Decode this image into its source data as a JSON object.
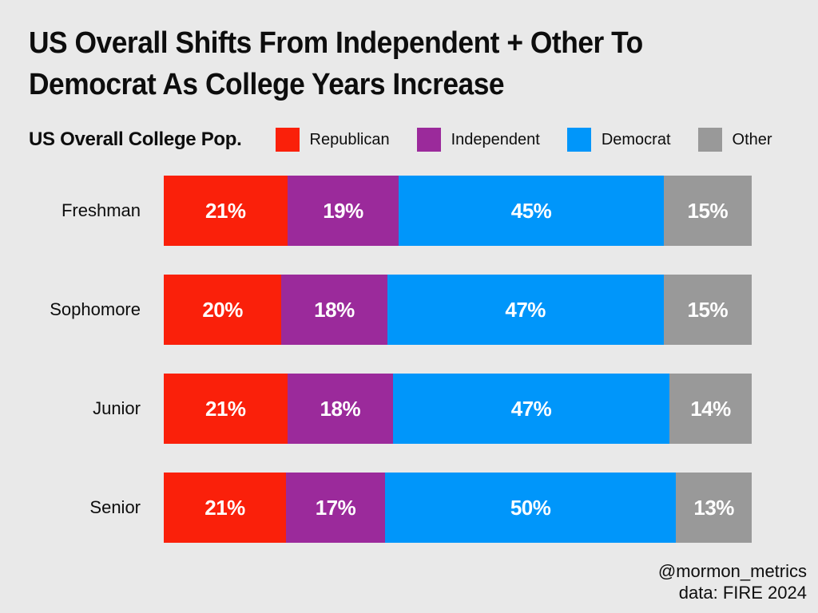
{
  "background": "#E9E9E9",
  "header": {
    "title_lines": [
      "US Overall Shifts From Independent + Other To",
      "Democrat As College Years Increase"
    ],
    "subtitle": "US Overall College Pop."
  },
  "legend": {
    "items": [
      {
        "label": "Republican",
        "color": "#FA200A"
      },
      {
        "label": "Independent",
        "color": "#9B2A9B"
      },
      {
        "label": "Democrat",
        "color": "#0096FA"
      },
      {
        "label": "Other",
        "color": "#999999"
      }
    ]
  },
  "chart_data": {
    "type": "bar",
    "orientation": "horizontal",
    "stacked": true,
    "title": "US Overall Shifts From Independent + Other To Democrat As College Years Increase",
    "subtitle": "US Overall College Pop.",
    "categories": [
      "Freshman",
      "Sophomore",
      "Junior",
      "Senior"
    ],
    "series": [
      {
        "name": "Republican",
        "color": "#FA200A",
        "values": [
          21,
          20,
          21,
          21
        ]
      },
      {
        "name": "Independent",
        "color": "#9B2A9B",
        "values": [
          19,
          18,
          18,
          17
        ]
      },
      {
        "name": "Democrat",
        "color": "#0096FA",
        "values": [
          45,
          47,
          47,
          50
        ]
      },
      {
        "name": "Other",
        "color": "#999999",
        "values": [
          15,
          15,
          14,
          13
        ]
      }
    ],
    "value_suffix": "%",
    "xlim": [
      0,
      100
    ],
    "grid": false,
    "legend_position": "top",
    "value_labels": "inside-center"
  },
  "footer": {
    "handle": "@mormon_metrics",
    "source": "data: FIRE 2024"
  }
}
